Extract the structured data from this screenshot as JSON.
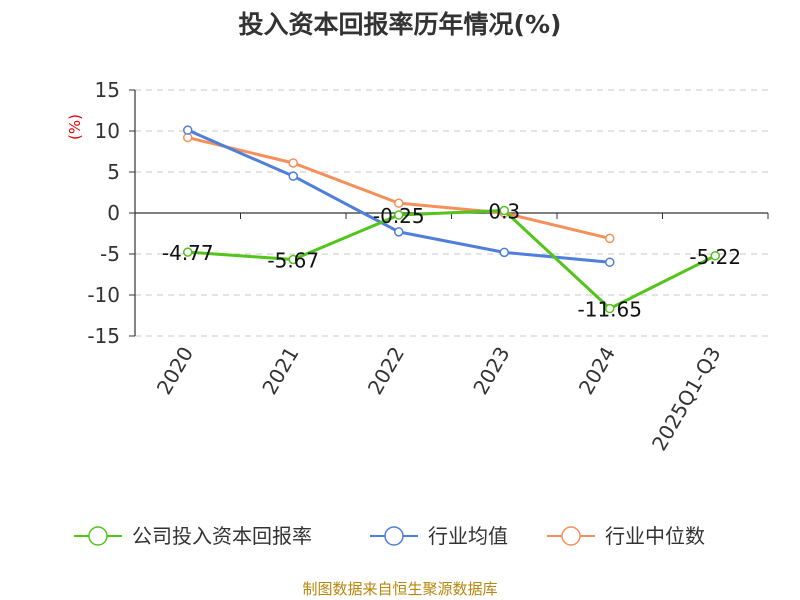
{
  "chart_data": {
    "type": "line",
    "title": "投入资本回报率历年情况(%)",
    "ylabel": "(%)",
    "xlabel": "",
    "ylim": [
      -15,
      15
    ],
    "yticks": [
      15,
      10,
      5,
      0,
      -5,
      -10,
      -15
    ],
    "grid": true,
    "legend_position": "bottom",
    "categories": [
      "2020",
      "2021",
      "2022",
      "2023",
      "2024",
      "2025Q1-Q3"
    ],
    "series": [
      {
        "name": "公司投入资本回报率",
        "color": "#52c41a",
        "values": [
          -4.77,
          -5.67,
          -0.25,
          0.3,
          -11.65,
          -5.22
        ],
        "labels": [
          "-4.77",
          "-5.67",
          "-0.25",
          "0.3",
          "-11.65",
          "-5.22"
        ]
      },
      {
        "name": "行业均值",
        "color": "#4f7fdb",
        "values": [
          10.1,
          4.5,
          -2.3,
          -4.8,
          -6.0,
          null
        ]
      },
      {
        "name": "行业中位数",
        "color": "#f5905a",
        "values": [
          9.2,
          6.1,
          1.2,
          0.0,
          -3.1,
          null
        ]
      }
    ]
  },
  "footer": {
    "source": "制图数据来自恒生聚源数据库"
  }
}
